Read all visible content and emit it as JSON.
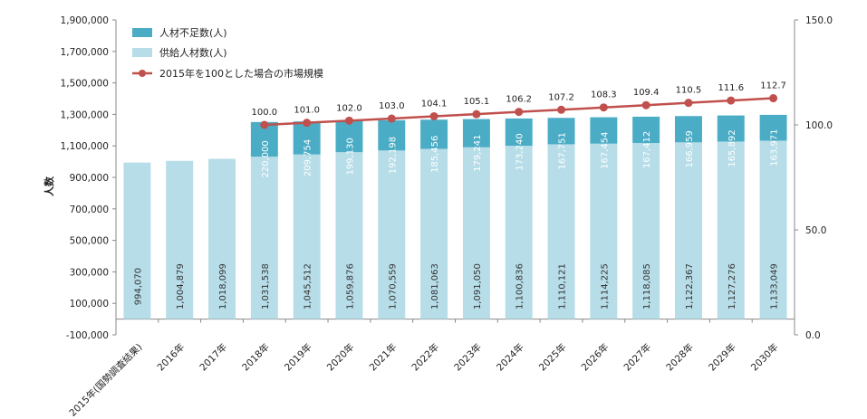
{
  "chart_data": {
    "type": "bar",
    "stacked": true,
    "categories": [
      "2015年(国勢調査結果)",
      "2016年",
      "2017年",
      "2018年",
      "2019年",
      "2020年",
      "2021年",
      "2022年",
      "2023年",
      "2024年",
      "2025年",
      "2026年",
      "2027年",
      "2028年",
      "2029年",
      "2030年"
    ],
    "series": [
      {
        "name": "供給人材数(人)",
        "color": "#b7dde8",
        "values": [
          994070,
          1004879,
          1018099,
          1031538,
          1045512,
          1059876,
          1070559,
          1081063,
          1091050,
          1100836,
          1110121,
          1114225,
          1118085,
          1122367,
          1127276,
          1133049
        ],
        "labels": [
          "994,070",
          "1,004,879",
          "1,018,099",
          "1,031,538",
          "1,045,512",
          "1,059,876",
          "1,070,559",
          "1,081,063",
          "1,091,050",
          "1,100,836",
          "1,110,121",
          "1,114,225",
          "1,118,085",
          "1,122,367",
          "1,127,276",
          "1,133,049"
        ]
      },
      {
        "name": "人材不足数(人)",
        "color": "#4bacc6",
        "values": [
          null,
          null,
          null,
          220000,
          209754,
          199130,
          192198,
          185456,
          179241,
          173240,
          167751,
          167454,
          167412,
          166959,
          165892,
          163971
        ],
        "labels": [
          "",
          "",
          "",
          "220,000",
          "209,754",
          "199,130",
          "192,198",
          "185,456",
          "179,241",
          "173,240",
          "167,751",
          "167,454",
          "167,412",
          "166,959",
          "165,892",
          "163,971"
        ]
      },
      {
        "name": "2015年を100とした場合の市場規模",
        "type": "line",
        "axis": "right",
        "color": "#c0504d",
        "values": [
          null,
          null,
          null,
          100.0,
          101.0,
          102.0,
          103.0,
          104.1,
          105.1,
          106.2,
          107.2,
          108.3,
          109.4,
          110.5,
          111.6,
          112.7
        ],
        "labels": [
          "",
          "",
          "",
          "100.0",
          "101.0",
          "102.0",
          "103.0",
          "104.1",
          "105.1",
          "106.2",
          "107.2",
          "108.3",
          "109.4",
          "110.5",
          "111.6",
          "112.7"
        ]
      }
    ],
    "ylabel": "人数",
    "ylim": [
      -100000,
      1900000
    ],
    "yticks": [
      "-100,000",
      "100,000",
      "300,000",
      "500,000",
      "700,000",
      "900,000",
      "1,100,000",
      "1,300,000",
      "1,500,000",
      "1,700,000",
      "1,900,000"
    ],
    "y2lim": [
      0,
      150
    ],
    "y2ticks": [
      "0.0",
      "50.0",
      "100.0",
      "150.0"
    ],
    "legend_position": "top-left",
    "grid": false
  }
}
